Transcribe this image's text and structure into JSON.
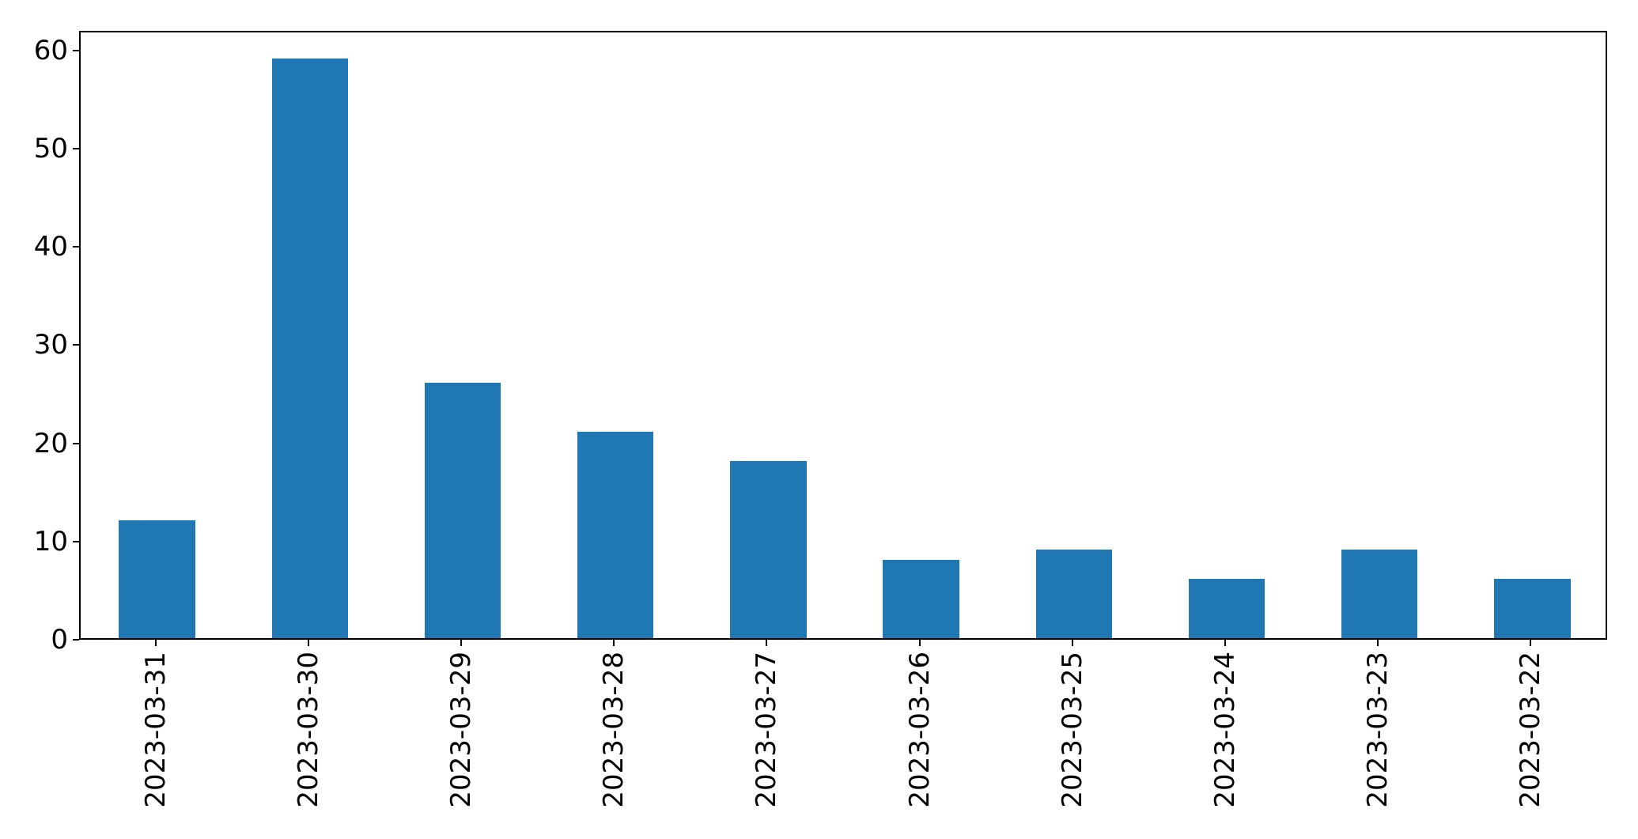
{
  "chart_data": {
    "type": "bar",
    "title": "",
    "xlabel": "",
    "ylabel": "",
    "categories": [
      "2023-03-31",
      "2023-03-30",
      "2023-03-29",
      "2023-03-28",
      "2023-03-27",
      "2023-03-26",
      "2023-03-25",
      "2023-03-24",
      "2023-03-23",
      "2023-03-22"
    ],
    "values": [
      12,
      59,
      26,
      21,
      18,
      8,
      9,
      6,
      9,
      6
    ],
    "yticks": [
      0,
      10,
      20,
      30,
      40,
      50,
      60
    ],
    "ylim": [
      0,
      62
    ],
    "bar_color": "#1f77b4",
    "axis_color": "#000000",
    "grid": false,
    "legend_position": "none",
    "x_tick_rotation_degrees": 90
  }
}
